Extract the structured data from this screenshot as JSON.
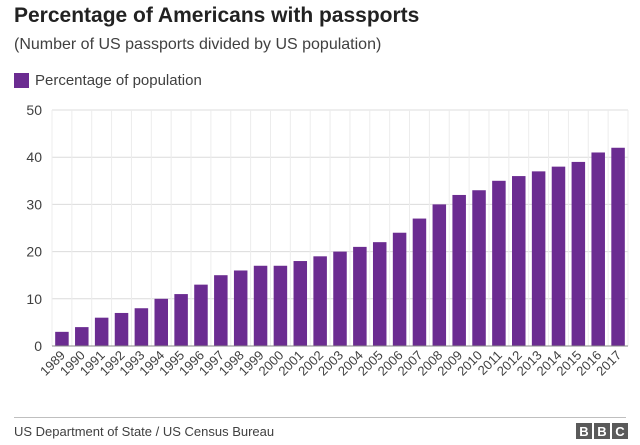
{
  "chart_data": {
    "type": "bar",
    "title": "Percentage of Americans with passports",
    "subtitle": "(Number of US passports divided by US population)",
    "xlabel": "",
    "ylabel": "",
    "ylim": [
      0,
      50
    ],
    "yticks": [
      "0",
      "10",
      "20",
      "30",
      "40",
      "50"
    ],
    "grid": true,
    "legend_position": "top-left",
    "series": [
      {
        "name": "Percentage of population",
        "color": "#6b2c91",
        "values": [
          3,
          4,
          6,
          7,
          8,
          10,
          11,
          13,
          15,
          16,
          17,
          17,
          18,
          19,
          20,
          21,
          22,
          24,
          27,
          30,
          32,
          33,
          35,
          36,
          37,
          38,
          39,
          41,
          42
        ]
      }
    ],
    "categories": [
      "1989",
      "1990",
      "1991",
      "1992",
      "1993",
      "1994",
      "1995",
      "1996",
      "1997",
      "1998",
      "1999",
      "2000",
      "2001",
      "2002",
      "2003",
      "2004",
      "2005",
      "2006",
      "2007",
      "2008",
      "2009",
      "2010",
      "2011",
      "2012",
      "2013",
      "2014",
      "2015",
      "2016",
      "2017"
    ]
  },
  "footer": {
    "source": "US Department of State / US Census Bureau",
    "logo_letters": [
      "B",
      "B",
      "C"
    ]
  }
}
